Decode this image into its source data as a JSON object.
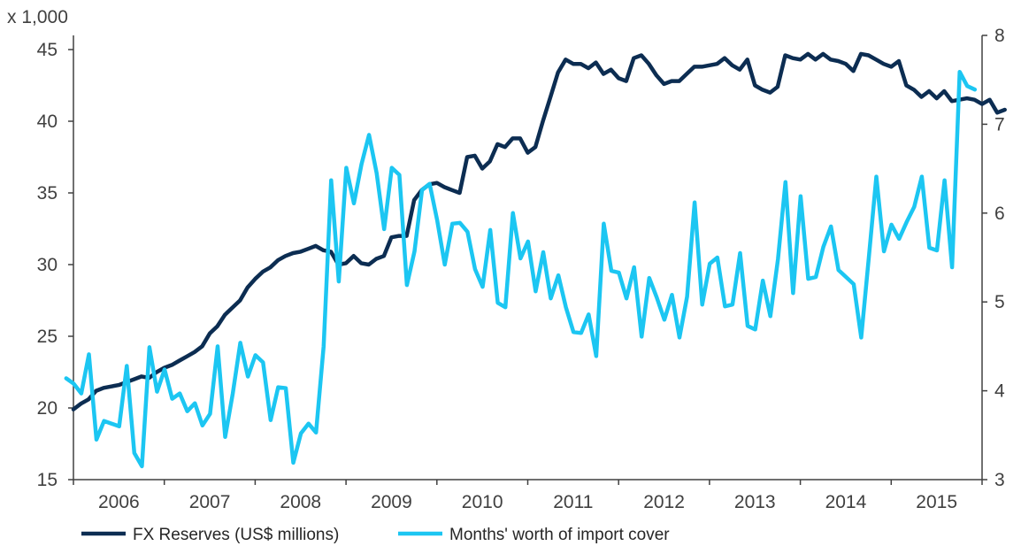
{
  "chart_data": {
    "type": "line",
    "multiplier_label": "x 1,000",
    "left_axis": {
      "ylim": [
        15,
        45
      ],
      "ticks": [
        15,
        20,
        25,
        30,
        35,
        40,
        45
      ]
    },
    "right_axis": {
      "ylim": [
        3,
        8
      ],
      "ticks": [
        3,
        4,
        5,
        6,
        7,
        8
      ]
    },
    "x_range": [
      2006,
      2016
    ],
    "x_tick_labels": [
      "2006",
      "2007",
      "2008",
      "2009",
      "2010",
      "2011",
      "2012",
      "2013",
      "2014",
      "2015"
    ],
    "grid": false,
    "legend_position": "bottom-left",
    "series": [
      {
        "name": "FX Reserves (US$ millions)",
        "axis": "left",
        "color": "#0c2d52",
        "x_start": 2006.0,
        "values": [
          19.9,
          20.3,
          20.6,
          21.2,
          21.4,
          21.5,
          21.6,
          21.8,
          22.0,
          22.2,
          22.1,
          22.5,
          22.8,
          23.0,
          23.3,
          23.6,
          23.9,
          24.3,
          25.2,
          25.7,
          26.5,
          27.0,
          27.5,
          28.4,
          29.0,
          29.5,
          29.8,
          30.3,
          30.6,
          30.8,
          30.9,
          31.1,
          31.3,
          31.0,
          30.9,
          30.0,
          30.1,
          30.6,
          30.1,
          30.0,
          30.4,
          30.6,
          31.9,
          32.0,
          32.0,
          34.5,
          35.2,
          35.6,
          35.7,
          35.4,
          35.2,
          35.0,
          37.5,
          37.6,
          36.7,
          37.2,
          38.4,
          38.2,
          38.8,
          38.8,
          37.8,
          38.2,
          40.0,
          41.7,
          43.4,
          44.3,
          44.0,
          44.0,
          43.7,
          44.1,
          43.3,
          43.6,
          43.0,
          42.8,
          44.4,
          44.6,
          44.0,
          43.2,
          42.6,
          42.8,
          42.8,
          43.3,
          43.8,
          43.8,
          43.9,
          44.0,
          44.4,
          43.9,
          43.6,
          44.3,
          42.5,
          42.2,
          42.0,
          42.4,
          44.6,
          44.4,
          44.3,
          44.7,
          44.3,
          44.7,
          44.3,
          44.2,
          44.0,
          43.5,
          44.7,
          44.6,
          44.3,
          44.0,
          43.8,
          44.2,
          42.5,
          42.2,
          41.7,
          42.1,
          41.6,
          42.1,
          41.4,
          41.5,
          41.6,
          41.5,
          41.2,
          41.5,
          40.6,
          40.8
        ]
      },
      {
        "name": "Months' worth of import cover",
        "axis": "right",
        "color": "#1cc6f2",
        "x_start": 2005.92,
        "values": [
          4.14,
          4.08,
          3.97,
          4.41,
          3.45,
          3.66,
          3.63,
          3.6,
          4.28,
          3.3,
          3.15,
          4.49,
          3.99,
          4.24,
          3.91,
          3.97,
          3.77,
          3.86,
          3.61,
          3.74,
          4.5,
          3.48,
          3.97,
          4.54,
          4.16,
          4.4,
          4.32,
          3.67,
          4.04,
          4.03,
          3.19,
          3.52,
          3.63,
          3.53,
          4.5,
          6.37,
          5.23,
          6.51,
          6.11,
          6.55,
          6.88,
          6.45,
          5.82,
          6.51,
          6.43,
          5.19,
          5.57,
          6.26,
          6.33,
          5.92,
          5.42,
          5.88,
          5.89,
          5.79,
          5.37,
          5.17,
          5.81,
          4.99,
          4.94,
          6.0,
          5.49,
          5.68,
          5.12,
          5.56,
          5.04,
          5.3,
          4.94,
          4.66,
          4.65,
          4.86,
          4.39,
          5.88,
          5.35,
          5.33,
          5.04,
          5.39,
          4.61,
          5.27,
          5.05,
          4.8,
          5.08,
          4.6,
          5.06,
          6.12,
          4.97,
          5.43,
          5.5,
          4.95,
          4.97,
          5.55,
          4.73,
          4.69,
          5.24,
          4.84,
          5.48,
          6.35,
          5.1,
          6.19,
          5.26,
          5.28,
          5.62,
          5.85,
          5.36,
          5.28,
          5.2,
          4.6,
          5.5,
          6.41,
          5.57,
          5.87,
          5.71,
          5.9,
          6.07,
          6.41,
          5.61,
          5.58,
          6.37,
          5.39,
          7.59,
          7.43,
          7.39
        ]
      }
    ]
  }
}
